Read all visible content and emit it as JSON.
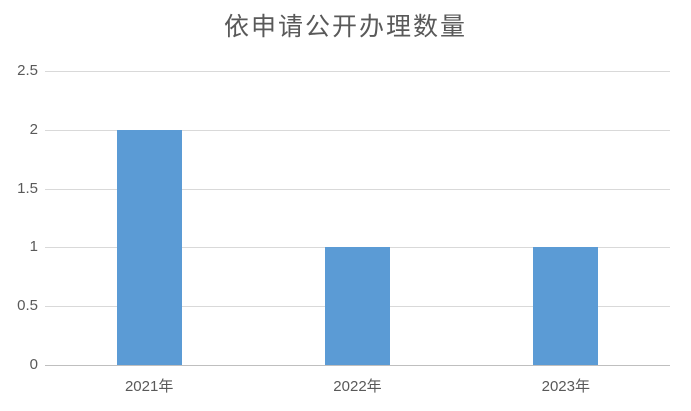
{
  "chart_data": {
    "type": "bar",
    "title": "依申请公开办理数量",
    "categories": [
      "2021年",
      "2022年",
      "2023年"
    ],
    "values": [
      2,
      1,
      1
    ],
    "xlabel": "",
    "ylabel": "",
    "ylim": [
      0,
      2.5
    ],
    "yticks": [
      0,
      0.5,
      1,
      1.5,
      2,
      2.5
    ],
    "grid": true,
    "legend_position": "none",
    "colors": {
      "bar": "#5B9BD5",
      "gridline": "#D9D9D9",
      "axis_line": "#BFBFBF",
      "text": "#595959"
    }
  }
}
